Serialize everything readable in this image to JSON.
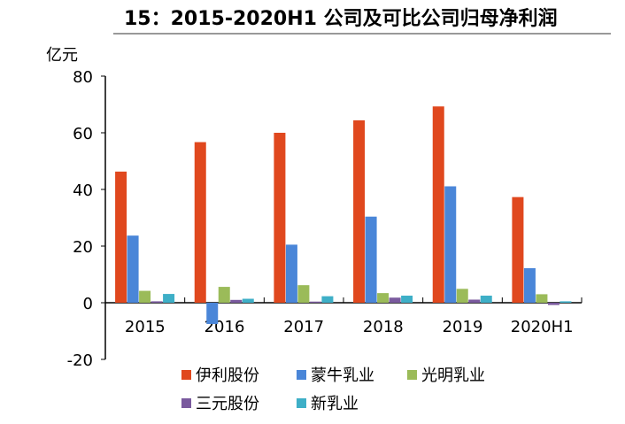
{
  "chart_data": {
    "type": "bar",
    "title": "15：2015-2020H1 公司及可比公司归母净利润",
    "ylabel": "亿元",
    "ylim": [
      -20,
      80
    ],
    "yticks": [
      80,
      60,
      40,
      20,
      0,
      -20
    ],
    "grid": false,
    "legend_position": "bottom",
    "categories": [
      "2015",
      "2016",
      "2017",
      "2018",
      "2019",
      "2020H1"
    ],
    "series": [
      {
        "name": "伊利股份",
        "color": "#e0481e",
        "values": [
          46.3,
          56.7,
          60.0,
          64.4,
          69.3,
          37.3
        ]
      },
      {
        "name": "蒙牛乳业",
        "color": "#4a86d8",
        "values": [
          23.7,
          -7.5,
          20.5,
          30.4,
          41.1,
          12.2
        ]
      },
      {
        "name": "光明乳业",
        "color": "#9bbb59",
        "values": [
          4.2,
          5.6,
          6.2,
          3.4,
          4.9,
          3.0
        ]
      },
      {
        "name": "三元股份",
        "color": "#7a5a9e",
        "values": [
          0.5,
          1.0,
          0.4,
          1.8,
          1.1,
          -0.8
        ]
      },
      {
        "name": "新乳业",
        "color": "#3eafc7",
        "values": [
          3.1,
          1.4,
          2.3,
          2.5,
          2.5,
          0.5
        ]
      }
    ]
  }
}
